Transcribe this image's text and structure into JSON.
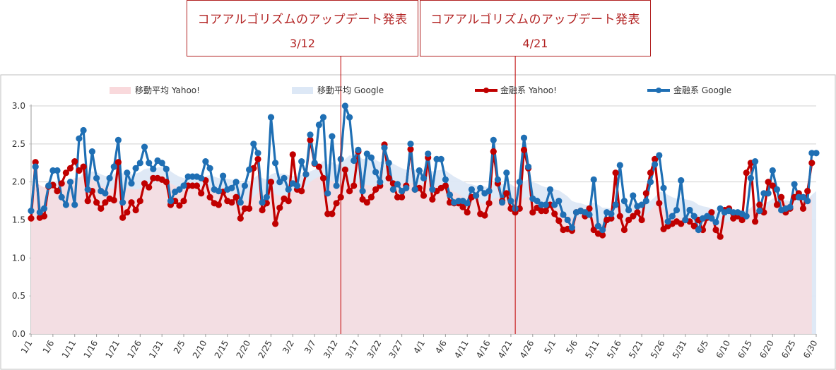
{
  "annotations": [
    {
      "title": "コアアルゴリズムのアップデート発表",
      "date": "3/12",
      "index": 71
    },
    {
      "title": "コアアルゴリズムのアップデート発表",
      "date": "4/21",
      "index": 111
    }
  ],
  "chart_data": {
    "type": "line",
    "title": "",
    "xlabel": "",
    "ylabel": "",
    "ylim": [
      0,
      3.0
    ],
    "yticks": [
      "0.0",
      "0.5",
      "1.0",
      "1.5",
      "2.0",
      "2.5",
      "3.0"
    ],
    "grid": true,
    "legend_position": "top",
    "x_tick_labels": [
      "1/1",
      "1/6",
      "1/11",
      "1/16",
      "1/21",
      "1/26",
      "1/31",
      "2/5",
      "2/10",
      "2/15",
      "2/20",
      "2/25",
      "3/2",
      "3/7",
      "3/12",
      "3/17",
      "3/22",
      "3/27",
      "4/1",
      "4/6",
      "4/11",
      "4/16",
      "4/21",
      "4/26",
      "5/1",
      "5/6",
      "5/11",
      "5/16",
      "5/21",
      "5/26",
      "5/31",
      "6/5",
      "6/10",
      "6/15",
      "6/20",
      "6/25",
      "6/30"
    ],
    "x_tick_every": 5,
    "point_count": 181,
    "series": [
      {
        "name": "移動平均 Yahoo!",
        "kind": "area",
        "color": "#f9d9dc"
      },
      {
        "name": "移動平均 Google",
        "kind": "area",
        "color": "#dde8f6"
      },
      {
        "name": "金融系 Yahoo!",
        "kind": "line",
        "color": "#c00000",
        "values": [
          1.52,
          2.26,
          1.53,
          1.55,
          1.94,
          1.96,
          1.88,
          1.98,
          2.12,
          2.18,
          2.27,
          2.15,
          2.2,
          1.75,
          1.88,
          1.73,
          1.65,
          1.73,
          1.78,
          1.76,
          2.26,
          1.53,
          1.6,
          1.73,
          1.63,
          1.75,
          1.98,
          1.93,
          2.05,
          2.05,
          2.03,
          2.0,
          1.7,
          1.75,
          1.69,
          1.75,
          1.95,
          1.95,
          1.95,
          1.85,
          2.02,
          1.8,
          1.72,
          1.7,
          1.87,
          1.75,
          1.73,
          1.8,
          1.52,
          1.65,
          1.65,
          2.18,
          2.3,
          1.63,
          1.72,
          2.0,
          1.45,
          1.66,
          1.78,
          1.75,
          2.36,
          1.9,
          1.88,
          2.1,
          2.55,
          2.24,
          2.2,
          2.05,
          1.58,
          1.58,
          1.72,
          1.8,
          2.16,
          1.88,
          1.95,
          2.4,
          1.77,
          1.73,
          1.8,
          1.9,
          1.95,
          2.49,
          2.05,
          1.98,
          1.8,
          1.8,
          1.95,
          2.43,
          1.9,
          1.92,
          1.82,
          2.32,
          1.77,
          1.88,
          1.92,
          1.95,
          1.73,
          1.72,
          1.72,
          1.67,
          1.6,
          1.8,
          1.82,
          1.58,
          1.56,
          1.72,
          2.4,
          1.98,
          1.75,
          1.85,
          1.65,
          1.6,
          1.65,
          2.42,
          2.18,
          1.6,
          1.66,
          1.62,
          1.62,
          1.7,
          1.58,
          1.49,
          1.37,
          1.38,
          1.36,
          1.6,
          1.62,
          1.55,
          1.65,
          1.37,
          1.32,
          1.3,
          1.5,
          1.52,
          2.12,
          1.55,
          1.37,
          1.5,
          1.55,
          1.6,
          1.5,
          1.85,
          2.12,
          2.3,
          1.72,
          1.38,
          1.42,
          1.45,
          1.48,
          1.45,
          1.5,
          1.48,
          1.42,
          1.5,
          1.37,
          1.53,
          1.6,
          1.37,
          1.28,
          1.63,
          1.65,
          1.52,
          1.55,
          1.5,
          2.12,
          2.25,
          1.48,
          1.7,
          1.6,
          2.0,
          1.95,
          1.7,
          1.8,
          1.6,
          1.65,
          1.8,
          1.85,
          1.65,
          1.88,
          2.25
        ],
        "band": [
          1.95,
          1.98,
          1.96,
          1.93,
          1.96,
          1.97,
          1.95,
          1.97,
          2.0,
          2.02,
          2.05,
          2.06,
          2.07,
          2.05,
          2.03,
          1.99,
          1.95,
          1.93,
          1.92,
          1.9,
          1.95,
          1.93,
          1.92,
          1.91,
          1.9,
          1.91,
          1.94,
          1.96,
          1.98,
          2.0,
          2.02,
          2.02,
          1.98,
          1.95,
          1.92,
          1.9,
          1.92,
          1.94,
          1.95,
          1.94,
          1.95,
          1.93,
          1.91,
          1.89,
          1.88,
          1.86,
          1.85,
          1.84,
          1.79,
          1.76,
          1.74,
          1.8,
          1.86,
          1.84,
          1.83,
          1.86,
          1.84,
          1.82,
          1.83,
          1.83,
          1.88,
          1.89,
          1.9,
          1.94,
          2.0,
          2.04,
          2.07,
          2.07,
          2.04,
          2.01,
          1.99,
          1.97,
          1.99,
          1.98,
          1.98,
          2.0,
          1.98,
          1.96,
          1.95,
          1.94,
          1.94,
          1.98,
          2.0,
          2.01,
          2.0,
          1.98,
          1.97,
          1.99,
          1.98,
          1.97,
          1.96,
          1.99,
          1.96,
          1.94,
          1.93,
          1.93,
          1.9,
          1.87,
          1.84,
          1.8,
          1.76,
          1.76,
          1.75,
          1.73,
          1.71,
          1.71,
          1.78,
          1.8,
          1.79,
          1.78,
          1.76,
          1.73,
          1.72,
          1.79,
          1.81,
          1.77,
          1.74,
          1.72,
          1.7,
          1.69,
          1.67,
          1.64,
          1.6,
          1.56,
          1.53,
          1.54,
          1.55,
          1.55,
          1.56,
          1.53,
          1.49,
          1.45,
          1.45,
          1.45,
          1.53,
          1.53,
          1.51,
          1.51,
          1.51,
          1.52,
          1.52,
          1.57,
          1.63,
          1.7,
          1.7,
          1.66,
          1.62,
          1.59,
          1.56,
          1.53,
          1.51,
          1.5,
          1.48,
          1.48,
          1.46,
          1.47,
          1.49,
          1.47,
          1.43,
          1.46,
          1.48,
          1.49,
          1.5,
          1.5,
          1.58,
          1.66,
          1.63,
          1.64,
          1.63,
          1.68,
          1.72,
          1.73,
          1.75,
          1.73,
          1.72,
          1.72,
          1.74,
          1.73,
          1.75,
          1.81
        ]
      },
      {
        "name": "金融系 Google",
        "kind": "line",
        "color": "#1f6fb4",
        "values": [
          1.62,
          2.2,
          1.6,
          1.65,
          1.95,
          2.15,
          2.15,
          1.8,
          1.7,
          2.0,
          1.7,
          2.57,
          2.68,
          1.9,
          2.4,
          2.05,
          1.88,
          1.85,
          2.05,
          2.2,
          2.55,
          1.73,
          2.12,
          1.98,
          2.18,
          2.25,
          2.46,
          2.25,
          2.17,
          2.28,
          2.25,
          2.17,
          1.75,
          1.87,
          1.9,
          1.95,
          2.07,
          2.07,
          2.07,
          2.05,
          2.27,
          2.18,
          1.9,
          1.88,
          2.08,
          1.9,
          1.92,
          2.0,
          1.73,
          1.95,
          2.16,
          2.5,
          2.38,
          1.73,
          1.8,
          2.85,
          2.25,
          2.0,
          2.05,
          1.9,
          1.98,
          1.95,
          2.27,
          2.1,
          2.62,
          2.25,
          2.75,
          2.85,
          1.85,
          2.6,
          1.95,
          2.3,
          3.0,
          2.85,
          2.28,
          2.42,
          1.88,
          2.37,
          2.32,
          2.13,
          2.0,
          2.45,
          2.25,
          1.9,
          1.97,
          1.88,
          1.92,
          2.5,
          1.9,
          2.15,
          2.05,
          2.37,
          1.9,
          2.3,
          2.3,
          2.03,
          1.83,
          1.73,
          1.75,
          1.75,
          1.72,
          1.9,
          1.82,
          1.92,
          1.85,
          1.88,
          2.55,
          2.03,
          1.73,
          2.12,
          1.75,
          1.65,
          2.0,
          2.58,
          2.2,
          1.78,
          1.75,
          1.7,
          1.7,
          1.9,
          1.7,
          1.75,
          1.57,
          1.5,
          1.4,
          1.6,
          1.62,
          1.6,
          1.57,
          2.03,
          1.42,
          1.37,
          1.6,
          1.58,
          1.7,
          2.22,
          1.75,
          1.63,
          1.82,
          1.68,
          1.7,
          1.75,
          2.0,
          2.23,
          2.35,
          1.92,
          1.48,
          1.55,
          1.63,
          2.02,
          1.5,
          1.63,
          1.55,
          1.37,
          1.52,
          1.55,
          1.52,
          1.47,
          1.65,
          1.6,
          1.62,
          1.6,
          1.6,
          1.58,
          1.55,
          2.05,
          2.27,
          1.62,
          1.85,
          1.85,
          2.15,
          1.9,
          1.63,
          1.65,
          1.67,
          1.97,
          1.8,
          1.8,
          1.75,
          2.38,
          2.38
        ],
        "band": [
          1.95,
          2.0,
          1.95,
          1.92,
          1.94,
          1.99,
          2.02,
          2.0,
          1.97,
          1.98,
          1.95,
          2.04,
          2.13,
          2.1,
          2.14,
          2.13,
          2.1,
          2.08,
          2.08,
          2.1,
          2.16,
          2.11,
          2.11,
          2.1,
          2.11,
          2.13,
          2.17,
          2.18,
          2.18,
          2.19,
          2.2,
          2.2,
          2.14,
          2.1,
          2.07,
          2.05,
          2.05,
          2.06,
          2.06,
          2.06,
          2.08,
          2.09,
          2.07,
          2.05,
          2.05,
          2.04,
          2.03,
          2.03,
          1.99,
          1.98,
          2.0,
          2.05,
          2.09,
          2.05,
          2.03,
          2.1,
          2.12,
          2.11,
          2.11,
          2.09,
          2.08,
          2.07,
          2.09,
          2.09,
          2.14,
          2.16,
          2.22,
          2.28,
          2.23,
          2.26,
          2.23,
          2.23,
          2.3,
          2.35,
          2.34,
          2.35,
          2.3,
          2.31,
          2.31,
          2.29,
          2.26,
          2.28,
          2.28,
          2.24,
          2.21,
          2.18,
          2.16,
          2.19,
          2.16,
          2.16,
          2.15,
          2.17,
          2.14,
          2.15,
          2.16,
          2.15,
          2.11,
          2.07,
          2.04,
          2.01,
          1.98,
          1.97,
          1.95,
          1.95,
          1.94,
          1.93,
          2.0,
          2.0,
          1.97,
          1.99,
          1.97,
          1.93,
          1.94,
          2.01,
          2.03,
          2.0,
          1.98,
          1.95,
          1.93,
          1.93,
          1.9,
          1.89,
          1.85,
          1.81,
          1.75,
          1.73,
          1.72,
          1.7,
          1.69,
          1.73,
          1.7,
          1.66,
          1.66,
          1.65,
          1.66,
          1.72,
          1.72,
          1.71,
          1.72,
          1.72,
          1.72,
          1.72,
          1.75,
          1.8,
          1.87,
          1.87,
          1.83,
          1.8,
          1.78,
          1.8,
          1.77,
          1.76,
          1.74,
          1.7,
          1.68,
          1.67,
          1.65,
          1.63,
          1.63,
          1.63,
          1.63,
          1.63,
          1.63,
          1.62,
          1.62,
          1.66,
          1.72,
          1.71,
          1.72,
          1.74,
          1.78,
          1.79,
          1.77,
          1.76,
          1.75,
          1.77,
          1.77,
          1.77,
          1.77,
          1.83,
          1.88
        ]
      }
    ]
  }
}
